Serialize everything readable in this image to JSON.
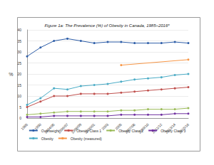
{
  "chart_data": {
    "type": "line",
    "title": "Figure 1a: The Prevalence (%) of Obesity in Canada, 1985–2016*",
    "y_label": "%",
    "categories": [
      "1985",
      "1990",
      "1994/95",
      "1996/97",
      "1998/99",
      "2000/01",
      "2003",
      "2005",
      "2007/08",
      "2009/10",
      "2011/12",
      "2013/14",
      "2015/16"
    ],
    "series": [
      {
        "name": "Overweight",
        "color": "#2e5ea8",
        "values": [
          28,
          32,
          35,
          36,
          35,
          34,
          34.5,
          34.5,
          34,
          34,
          34,
          34.5,
          34
        ]
      },
      {
        "name": "Obesity Class 1",
        "color": "#c0504d",
        "values": [
          5,
          7.5,
          10,
          10,
          11,
          11,
          11,
          11.5,
          12,
          12.5,
          13,
          13.5,
          14
        ]
      },
      {
        "name": "Obesity Class 2",
        "color": "#9bbb59",
        "values": [
          1.5,
          2,
          2.5,
          3,
          3,
          3,
          3,
          3.5,
          3.5,
          4,
          4,
          4,
          4.5
        ]
      },
      {
        "name": "Obesity Class 3",
        "color": "#7030a0",
        "values": [
          0.5,
          0.5,
          1,
          1,
          1,
          1,
          1,
          1.5,
          1.5,
          1.5,
          1.5,
          2,
          2
        ]
      },
      {
        "name": "Obesity",
        "color": "#4bacc6",
        "values": [
          6,
          9,
          13.5,
          13,
          14.5,
          15,
          15.5,
          16.5,
          17.5,
          18,
          18.5,
          19.5,
          20
        ]
      },
      {
        "name": "Obesity (measured)",
        "color": "#f79646",
        "values": [
          null,
          null,
          null,
          null,
          null,
          null,
          null,
          24,
          null,
          null,
          null,
          null,
          26.5
        ]
      }
    ],
    "ylim": [
      0,
      40
    ],
    "yticks": [
      0,
      5,
      10,
      15,
      20,
      25,
      30,
      35,
      40
    ],
    "grid": true,
    "legend": "bottom",
    "marker": "circle"
  }
}
